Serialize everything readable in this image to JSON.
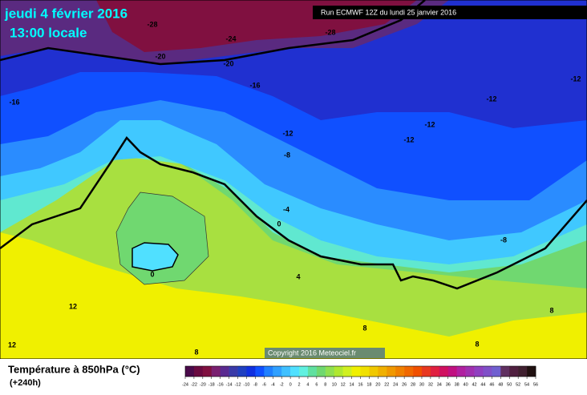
{
  "header": {
    "date": "jeudi 4 février 2016",
    "time": "13:00 locale",
    "run": "Run ECMWF 12Z du lundi 25 janvier 2016"
  },
  "map": {
    "contour_labels": [
      -28,
      -24,
      -28,
      -20,
      -20,
      -16,
      -16,
      -12,
      -12,
      -12,
      -12,
      -12,
      -8,
      -8,
      -4,
      0,
      0,
      4,
      8,
      8,
      8,
      8,
      12,
      12
    ],
    "copyright": "Copyright 2016 Meteociel.fr"
  },
  "legend": {
    "title": "Température à 850hPa (°C)",
    "lead": "(+240h)",
    "ticks": [
      -24,
      -22,
      -20,
      -18,
      -16,
      -14,
      -12,
      -10,
      -8,
      -6,
      -4,
      -2,
      0,
      2,
      4,
      6,
      8,
      10,
      12,
      14,
      16,
      18,
      20,
      22,
      24,
      26,
      28,
      30,
      32,
      34,
      36,
      38,
      40,
      42,
      44,
      46,
      48,
      50,
      52,
      54,
      56
    ],
    "colors": [
      "#4a0a4a",
      "#6a0a40",
      "#801040",
      "#7a2070",
      "#5a2a90",
      "#3a3aa8",
      "#2040c0",
      "#1030e0",
      "#1050ff",
      "#2080ff",
      "#30a0ff",
      "#40c0ff",
      "#50e0ff",
      "#60f0e0",
      "#60e0a0",
      "#70d870",
      "#90e050",
      "#b0e830",
      "#d0f020",
      "#f0f000",
      "#f0e000",
      "#f0c800",
      "#f0b000",
      "#f09800",
      "#f08000",
      "#f06800",
      "#f05000",
      "#e83820",
      "#e02040",
      "#d01060",
      "#c01080",
      "#b020a0",
      "#a030b0",
      "#9040c0",
      "#8050c8",
      "#7060d0",
      "#603060",
      "#502040",
      "#402030",
      "#201010"
    ]
  }
}
